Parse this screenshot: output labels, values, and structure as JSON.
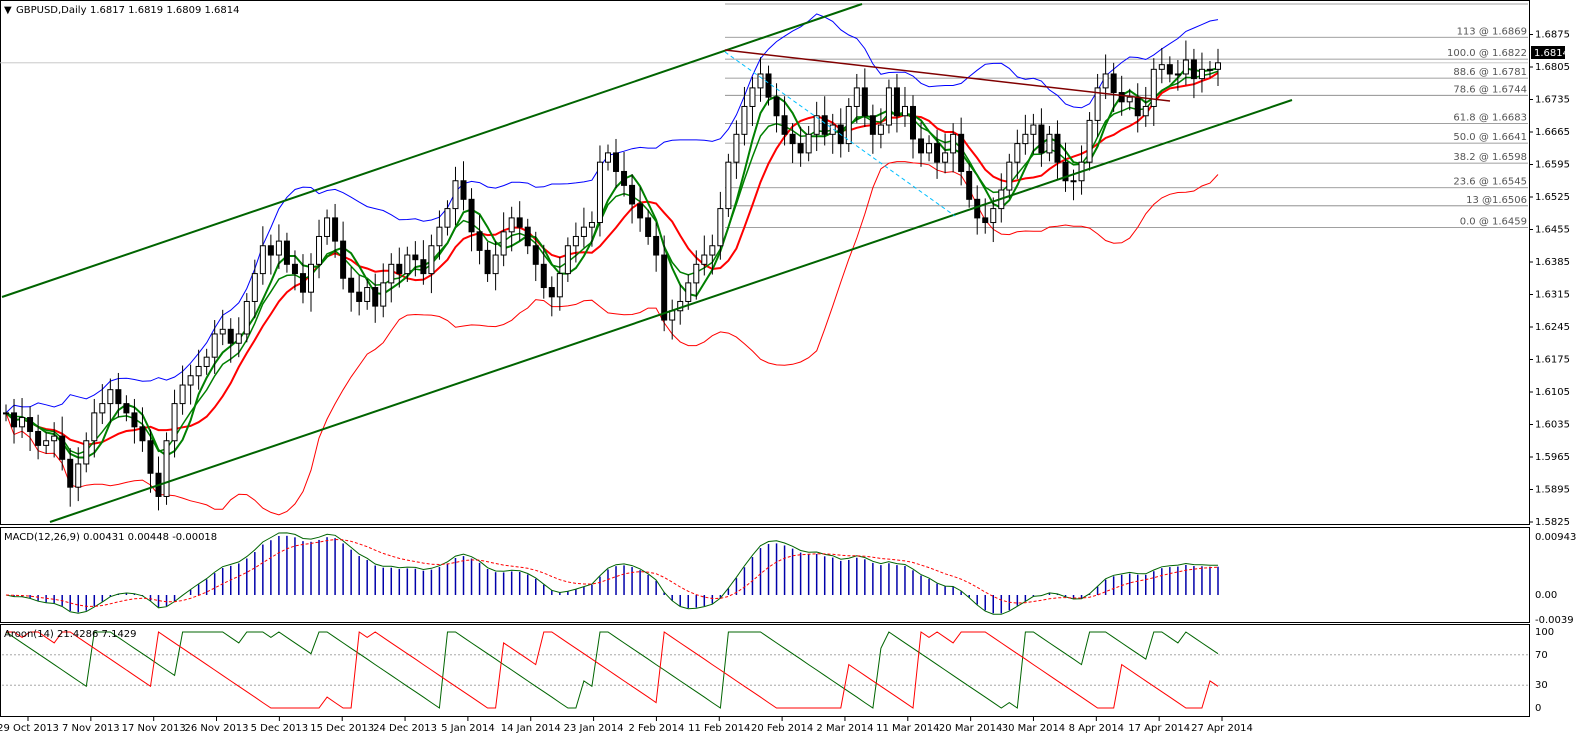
{
  "colors": {
    "price_axis_frame": "#000000",
    "bollinger_upper": "#0000ff",
    "bollinger_lower": "#ff0000",
    "ma_red": "#ff0000",
    "ma_green": "#008000",
    "ma_highlight": "#ffff00",
    "trend_channel": "#006400",
    "resistance_line": "#800000",
    "fib_line": "#808080",
    "fib_diag": "#00bfff",
    "macd_line": "#006400",
    "macd_signal": "#ff0000",
    "macd_hist": "#0000aa",
    "aroon_up": "#006400",
    "aroon_down": "#ff0000",
    "current_price_bg": "#000000"
  },
  "header": {
    "symbol_label": "GBPUSD,Daily",
    "ohlc": "1.6817 1.6819 1.6809 1.6814"
  },
  "current_price_label": "1.6814",
  "chart_data": [
    {
      "type": "candlestick",
      "title": "GBPUSD,Daily",
      "ylim": [
        1.5825,
        1.6945
      ],
      "y_ticks": [
        "1.6875",
        "1.6805",
        "1.6735",
        "1.6665",
        "1.6595",
        "1.6525",
        "1.6455",
        "1.6385",
        "1.6315",
        "1.6245",
        "1.6175",
        "1.6105",
        "1.6035",
        "1.5965",
        "1.5895",
        "1.5825"
      ],
      "x_ticks": [
        "29 Oct 2013",
        "7 Nov 2013",
        "17 Nov 2013",
        "26 Nov 2013",
        "5 Dec 2013",
        "15 Dec 2013",
        "24 Dec 2013",
        "5 Jan 2014",
        "14 Jan 2014",
        "23 Jan 2014",
        "2 Feb 2014",
        "11 Feb 2014",
        "20 Feb 2014",
        "2 Mar 2014",
        "11 Mar 2014",
        "20 Mar 2014",
        "30 Mar 2014",
        "8 Apr 2014",
        "17 Apr 2014",
        "27 Apr 2014"
      ],
      "close_path": [
        1.606,
        1.603,
        1.605,
        1.602,
        1.599,
        1.6,
        1.601,
        1.596,
        1.59,
        1.595,
        1.6,
        1.606,
        1.608,
        1.611,
        1.608,
        1.606,
        1.603,
        1.6,
        1.593,
        1.588,
        1.6,
        1.608,
        1.612,
        1.614,
        1.616,
        1.618,
        1.623,
        1.624,
        1.621,
        1.623,
        1.63,
        1.636,
        1.642,
        1.64,
        1.643,
        1.638,
        1.636,
        1.632,
        1.638,
        1.644,
        1.648,
        1.643,
        1.635,
        1.632,
        1.63,
        1.633,
        1.629,
        1.634,
        1.638,
        1.636,
        1.64,
        1.639,
        1.636,
        1.642,
        1.646,
        1.65,
        1.656,
        1.652,
        1.645,
        1.641,
        1.636,
        1.64,
        1.645,
        1.648,
        1.646,
        1.642,
        1.638,
        1.633,
        1.631,
        1.636,
        1.642,
        1.644,
        1.646,
        1.647,
        1.66,
        1.662,
        1.658,
        1.655,
        1.651,
        1.648,
        1.644,
        1.64,
        1.626,
        1.628,
        1.63,
        1.634,
        1.638,
        1.64,
        1.642,
        1.65,
        1.66,
        1.666,
        1.672,
        1.676,
        1.679,
        1.674,
        1.67,
        1.666,
        1.664,
        1.662,
        1.666,
        1.67,
        1.666,
        1.668,
        1.664,
        1.672,
        1.676,
        1.67,
        1.666,
        1.668,
        1.676,
        1.67,
        1.672,
        1.665,
        1.662,
        1.664,
        1.66,
        1.662,
        1.666,
        1.658,
        1.652,
        1.648,
        1.647,
        1.65,
        1.654,
        1.66,
        1.664,
        1.666,
        1.668,
        1.662,
        1.666,
        1.66,
        1.656,
        1.656,
        1.66,
        1.669,
        1.676,
        1.679,
        1.675,
        1.673,
        1.674,
        1.67,
        1.672,
        1.68,
        1.681,
        1.679,
        1.679,
        1.682,
        1.678,
        1.68,
        1.68,
        1.6814
      ],
      "fibonacci_levels": [
        {
          "label": "113 @ 1.6869",
          "value": 1.6869
        },
        {
          "label": "100.0 @ 1.6822",
          "value": 1.6822
        },
        {
          "label": "88.6 @ 1.6781",
          "value": 1.6781
        },
        {
          "label": "78.6 @ 1.6744",
          "value": 1.6744
        },
        {
          "label": "61.8 @ 1.6683",
          "value": 1.6683
        },
        {
          "label": "50.0 @ 1.6641",
          "value": 1.6641
        },
        {
          "label": "38.2 @ 1.6598",
          "value": 1.6598
        },
        {
          "label": "23.6 @ 1.6545",
          "value": 1.6545
        },
        {
          "label": "13 @1.6506",
          "value": 1.6506
        },
        {
          "label": "0.0 @ 1.6459",
          "value": 1.6459
        }
      ]
    },
    {
      "type": "line",
      "title": "MACD(12,26,9) 0.00431 0.00448 -0.00018",
      "y_ticks": [
        "0.00943",
        "0.00",
        "-0.0039"
      ]
    },
    {
      "type": "line",
      "title": "Aroon(14) 21.4286 7.1429",
      "y_ticks": [
        "100",
        "70",
        "30",
        "0"
      ],
      "ylim": [
        0,
        100
      ]
    }
  ]
}
